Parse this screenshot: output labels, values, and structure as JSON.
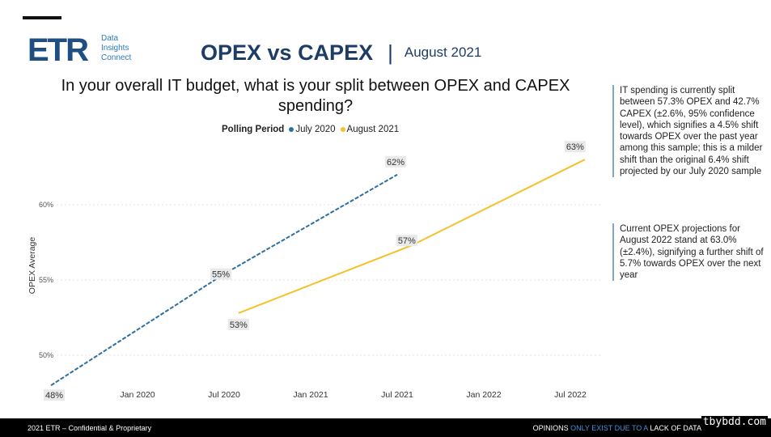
{
  "logo": {
    "mark": "ETR",
    "tagline": [
      "Data",
      "Insights",
      "Connect"
    ]
  },
  "header": {
    "title": "OPEX vs CAPEX",
    "separator": "|",
    "date": "August 2021"
  },
  "question": "In your overall IT budget, what is your split between OPEX and CAPEX spending?",
  "legend": {
    "title": "Polling Period",
    "items": [
      {
        "label": "July 2020",
        "color": "#2e6f9e"
      },
      {
        "label": "August 2021",
        "color": "#f5c12a"
      }
    ]
  },
  "notes": [
    "IT spending is currently split between 57.3% OPEX and 42.7% CAPEX (±2.6%, 95% confidence level), which signifies a 4.5% shift towards OPEX over the past year among this sample; this is a milder shift than the original 6.4% shift projected by our July 2020 sample",
    "Current OPEX projections for August 2022 stand at 63.0% (±2.4%), signifying a further shift of 5.7% towards OPEX over the next year"
  ],
  "footer": {
    "left": "2021 ETR – Confidential & Proprietary",
    "right_a": "OPINIONS ",
    "right_b": "ONLY EXIST DUE TO A ",
    "right_c": "LACK OF DATA"
  },
  "watermark": "tbybdd.com",
  "chart_data": {
    "type": "line",
    "ylabel": "OPEX Average",
    "xlabel": "",
    "x_ticks": [
      "Jan 2020",
      "Jul 2020",
      "Jan 2021",
      "Jul 2021",
      "Jan 2022",
      "Jul 2022"
    ],
    "y_ticks": [
      "50%",
      "55%",
      "60%"
    ],
    "ylim": [
      48,
      65
    ],
    "grid": true,
    "series": [
      {
        "name": "July 2020",
        "color": "#2e6f9e",
        "dashed": true,
        "points": [
          {
            "x": "Jul 2019",
            "y": 48,
            "label": "48%"
          },
          {
            "x": "Jul 2020",
            "y": 55.4,
            "label": "55%"
          },
          {
            "x": "Jul 2021",
            "y": 62,
            "label": "62%"
          }
        ]
      },
      {
        "name": "August 2021",
        "color": "#f5c12a",
        "dashed": false,
        "points": [
          {
            "x": "Aug 2020",
            "y": 52.8,
            "label": "53%"
          },
          {
            "x": "Aug 2021",
            "y": 57.3,
            "label": "57%"
          },
          {
            "x": "Aug 2022",
            "y": 63,
            "label": "63%"
          }
        ]
      }
    ]
  }
}
